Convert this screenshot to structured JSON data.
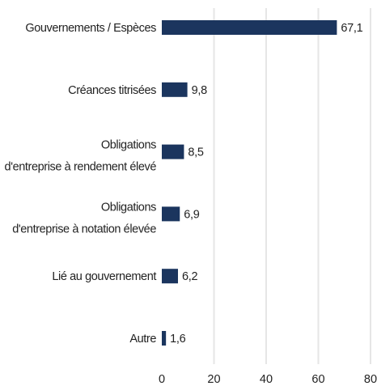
{
  "chart_data": {
    "type": "bar",
    "orientation": "horizontal",
    "categories": [
      [
        "Gouvernements / Espèces"
      ],
      [
        "Créances titrisées"
      ],
      [
        "Obligations",
        "d'entreprise à rendement élevé"
      ],
      [
        "Obligations",
        "d'entreprise à notation élevée"
      ],
      [
        "Lié au gouvernement"
      ],
      [
        "Autre"
      ]
    ],
    "values": [
      67.1,
      9.8,
      8.5,
      6.9,
      6.2,
      1.6
    ],
    "value_labels": [
      "67,1",
      "9,8",
      "8,5",
      "6,9",
      "6,2",
      "1,6"
    ],
    "xlim": [
      0,
      80
    ],
    "xticks": [
      0,
      20,
      40,
      60,
      80
    ],
    "xtick_labels": [
      "0",
      "20",
      "40",
      "60",
      "80"
    ],
    "title": "",
    "xlabel": "",
    "ylabel": "",
    "grid": "vertical",
    "legend": "none",
    "bar_color": "#1b355e",
    "grid_color": "#e6e6e6"
  }
}
